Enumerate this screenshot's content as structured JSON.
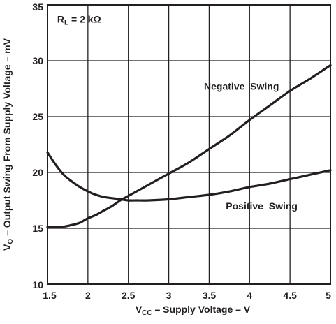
{
  "chart_data": {
    "type": "line",
    "title": "",
    "xlabel": {
      "prefix": "V",
      "sub": "CC",
      "rest": " – Supply Voltage – V"
    },
    "ylabel": {
      "prefix": "V",
      "sub": "O",
      "rest": " – Output Swing From Supply Voltage – mV"
    },
    "xlim": [
      1.5,
      5
    ],
    "ylim": [
      10,
      35
    ],
    "xticks": [
      1.5,
      2,
      2.5,
      3,
      3.5,
      4,
      4.5,
      5
    ],
    "xtick_labels": [
      "1.5",
      "2",
      "2.5",
      "3",
      "3.5",
      "4",
      "4.5",
      "5"
    ],
    "yticks": [
      10,
      15,
      20,
      25,
      30,
      35
    ],
    "ytick_labels": [
      "10",
      "15",
      "20",
      "25",
      "30",
      "35"
    ],
    "grid": true,
    "annotations": [
      {
        "id": "rl",
        "prefix": "R",
        "sub": "L",
        "rest": " = 2 kΩ",
        "x": 1.62,
        "y": 33.4
      },
      {
        "id": "neg",
        "text": "Negative  Swing",
        "x": 3.9,
        "y": 27.4
      },
      {
        "id": "pos",
        "text": "Positive  Swing",
        "x": 4.15,
        "y": 16.7
      }
    ],
    "series": [
      {
        "name": "Negative Swing",
        "color": "#231f20",
        "x": [
          1.5,
          1.6,
          1.7,
          1.8,
          1.9,
          2.0,
          2.1,
          2.2,
          2.3,
          2.4,
          2.5,
          2.75,
          3.0,
          3.25,
          3.5,
          3.75,
          4.0,
          4.25,
          4.5,
          4.75,
          5.0
        ],
        "y": [
          15.1,
          15.1,
          15.15,
          15.3,
          15.5,
          15.9,
          16.2,
          16.6,
          17.0,
          17.5,
          17.9,
          18.9,
          19.9,
          20.9,
          22.1,
          23.3,
          24.7,
          26.0,
          27.3,
          28.4,
          29.6
        ]
      },
      {
        "name": "Positive Swing",
        "color": "#231f20",
        "x": [
          1.5,
          1.6,
          1.7,
          1.8,
          1.9,
          2.0,
          2.1,
          2.2,
          2.3,
          2.4,
          2.5,
          2.6,
          2.75,
          3.0,
          3.25,
          3.5,
          3.75,
          4.0,
          4.25,
          4.5,
          4.75,
          5.0
        ],
        "y": [
          21.8,
          20.7,
          19.8,
          19.2,
          18.7,
          18.3,
          18.0,
          17.8,
          17.7,
          17.6,
          17.5,
          17.5,
          17.5,
          17.6,
          17.8,
          18.0,
          18.3,
          18.7,
          19.0,
          19.4,
          19.8,
          20.2
        ]
      }
    ]
  },
  "style": {
    "ink": "#231f20",
    "background": "#ffffff"
  }
}
